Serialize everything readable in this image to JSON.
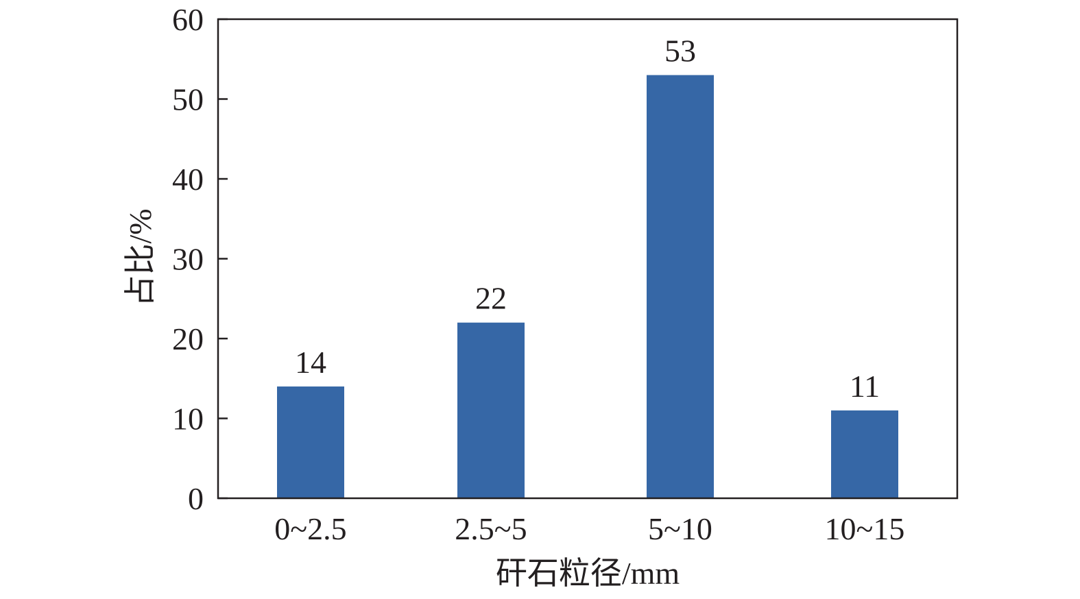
{
  "chart_data": {
    "type": "bar",
    "categories": [
      "0~2.5",
      "2.5~5",
      "5~10",
      "10~15"
    ],
    "values": [
      14,
      22,
      53,
      11
    ],
    "data_labels": [
      "14",
      "22",
      "53",
      "11"
    ],
    "xlabel": "矸石粒径/mm",
    "ylabel": "占比/%",
    "ylim": [
      0,
      60
    ],
    "yticks": [
      "0",
      "10",
      "20",
      "30",
      "40",
      "50",
      "60"
    ],
    "bar_color": "#3667a6",
    "grid": false,
    "legend": false
  }
}
